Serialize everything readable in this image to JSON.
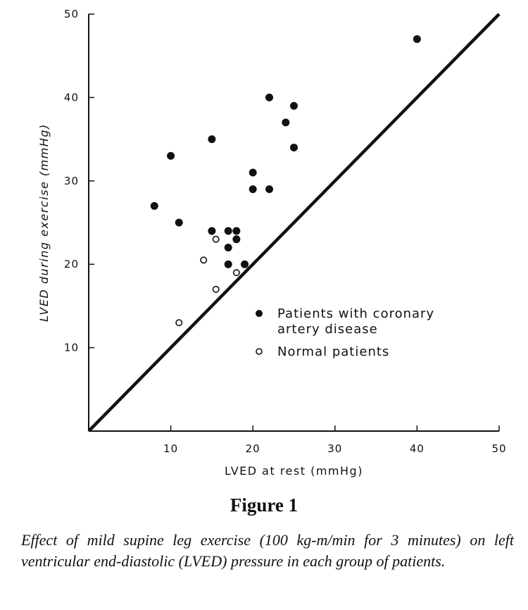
{
  "chart_data": {
    "type": "scatter",
    "xlabel": "LVED at rest (mmHg)",
    "ylabel": "LVED during exercise (mmHg)",
    "xlim": [
      0,
      50
    ],
    "ylim": [
      0,
      50
    ],
    "xticks": [
      10,
      20,
      30,
      40,
      50
    ],
    "yticks": [
      10,
      20,
      30,
      40,
      50
    ],
    "grid": false,
    "legend_position": "center-right",
    "reference_line": {
      "type": "identity",
      "from": [
        0,
        0
      ],
      "to": [
        50,
        50
      ]
    },
    "series": [
      {
        "name": "Patients with coronary artery disease",
        "legend_lines": [
          "Patients with coronary",
          "artery disease"
        ],
        "marker": "filled-circle",
        "points": [
          [
            8,
            27
          ],
          [
            10,
            33
          ],
          [
            11,
            25
          ],
          [
            15,
            35
          ],
          [
            15,
            24
          ],
          [
            17,
            24
          ],
          [
            17,
            22
          ],
          [
            17,
            20
          ],
          [
            18,
            24
          ],
          [
            18,
            23
          ],
          [
            19,
            20
          ],
          [
            20,
            31
          ],
          [
            20,
            29
          ],
          [
            22,
            40
          ],
          [
            22,
            29
          ],
          [
            24,
            37
          ],
          [
            25,
            39
          ],
          [
            25,
            34
          ],
          [
            40,
            47
          ]
        ]
      },
      {
        "name": "Normal patients",
        "legend_lines": [
          "Normal patients"
        ],
        "marker": "open-circle",
        "points": [
          [
            11,
            13
          ],
          [
            14,
            20.5
          ],
          [
            15.5,
            23
          ],
          [
            15.5,
            17
          ],
          [
            18,
            19
          ]
        ]
      }
    ]
  },
  "figure": {
    "title": "Figure 1",
    "caption": "Effect of mild supine leg exercise (100 kg-m/min for 3 minutes) on left ventricular end-diastolic (LVED) pressure in each group of patients."
  },
  "colors": {
    "ink": "#111111",
    "background": "#ffffff"
  }
}
